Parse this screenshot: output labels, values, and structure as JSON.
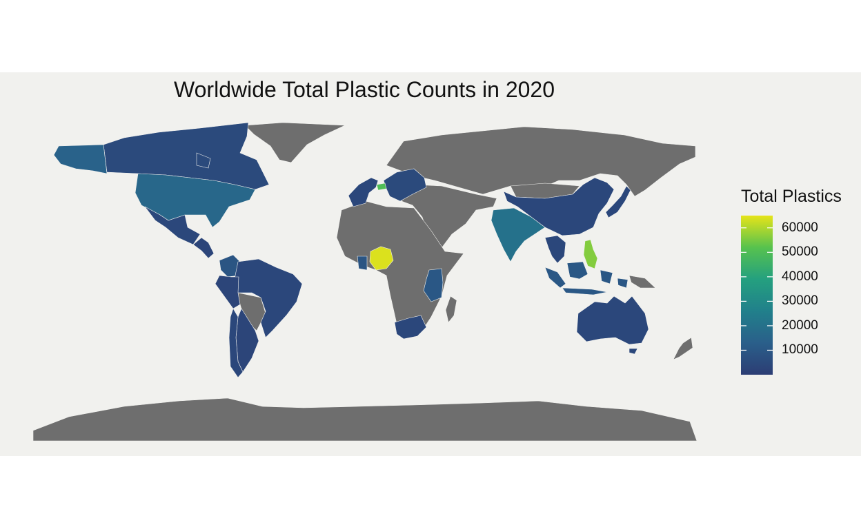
{
  "chart_data": {
    "type": "choropleth",
    "title": "Worldwide Total Plastic Counts in 2020",
    "legend": {
      "title": "Total Plastics",
      "ticks": [
        "60000",
        "50000",
        "40000",
        "30000",
        "20000",
        "10000"
      ],
      "range": [
        0,
        65000
      ],
      "placement": "right"
    },
    "colors": {
      "ocean": "#f1f1ee",
      "no_data": "#6e6e6e",
      "scale": [
        "#2c3d74",
        "#2a5f8a",
        "#21808b",
        "#24a07f",
        "#57c24e",
        "#e6e419"
      ]
    },
    "regions": [
      {
        "name": "Canada",
        "value": 5000
      },
      {
        "name": "Alaska (United States)",
        "value": 14000
      },
      {
        "name": "United States",
        "value": 16000
      },
      {
        "name": "Mexico",
        "value": 4000
      },
      {
        "name": "Central America",
        "value": 3000
      },
      {
        "name": "Colombia",
        "value": 9000
      },
      {
        "name": "Brazil",
        "value": 4000
      },
      {
        "name": "Peru / Ecuador",
        "value": 3000
      },
      {
        "name": "Argentina",
        "value": 3000
      },
      {
        "name": "Chile",
        "value": 4000
      },
      {
        "name": "Western Europe",
        "value": 4000
      },
      {
        "name": "Switzerland",
        "value": 50000
      },
      {
        "name": "Eastern Europe",
        "value": 5000
      },
      {
        "name": "Nigeria",
        "value": 64000
      },
      {
        "name": "Ghana / Togo",
        "value": 9000
      },
      {
        "name": "Kenya / Tanzania",
        "value": 10000
      },
      {
        "name": "South Africa",
        "value": 4000
      },
      {
        "name": "India",
        "value": 20000
      },
      {
        "name": "China",
        "value": 4000
      },
      {
        "name": "Japan",
        "value": 4000
      },
      {
        "name": "Southeast Asia",
        "value": 4000
      },
      {
        "name": "Philippines",
        "value": 56000
      },
      {
        "name": "Indonesia",
        "value": 10000
      },
      {
        "name": "Australia",
        "value": 4000
      }
    ]
  }
}
